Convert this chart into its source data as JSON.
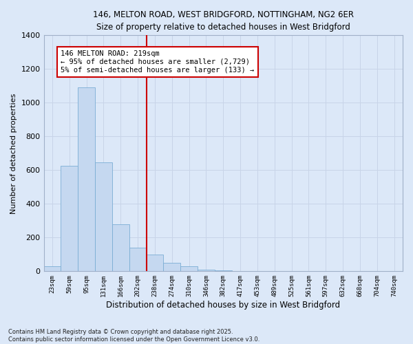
{
  "title_line1": "146, MELTON ROAD, WEST BRIDGFORD, NOTTINGHAM, NG2 6ER",
  "title_line2": "Size of property relative to detached houses in West Bridgford",
  "xlabel": "Distribution of detached houses by size in West Bridgford",
  "ylabel": "Number of detached properties",
  "bar_color": "#c5d8f0",
  "bar_edge_color": "#7aadd4",
  "categories": [
    "23sqm",
    "59sqm",
    "95sqm",
    "131sqm",
    "166sqm",
    "202sqm",
    "238sqm",
    "274sqm",
    "310sqm",
    "346sqm",
    "382sqm",
    "417sqm",
    "453sqm",
    "489sqm",
    "525sqm",
    "561sqm",
    "597sqm",
    "632sqm",
    "668sqm",
    "704sqm",
    "740sqm"
  ],
  "values": [
    30,
    625,
    1090,
    645,
    280,
    140,
    100,
    50,
    30,
    10,
    5,
    0,
    0,
    0,
    0,
    0,
    0,
    0,
    0,
    0,
    0
  ],
  "vline_x": 6.0,
  "vline_color": "#cc0000",
  "annotation_text": "146 MELTON ROAD: 219sqm\n← 95% of detached houses are smaller (2,729)\n5% of semi-detached houses are larger (133) →",
  "annotation_box_color": "#ffffff",
  "annotation_edge_color": "#cc0000",
  "ylim": [
    0,
    1400
  ],
  "yticks": [
    0,
    200,
    400,
    600,
    800,
    1000,
    1200,
    1400
  ],
  "grid_color": "#c8d4e8",
  "bg_color": "#dce8f8",
  "footer_line1": "Contains HM Land Registry data © Crown copyright and database right 2025.",
  "footer_line2": "Contains public sector information licensed under the Open Government Licence v3.0."
}
